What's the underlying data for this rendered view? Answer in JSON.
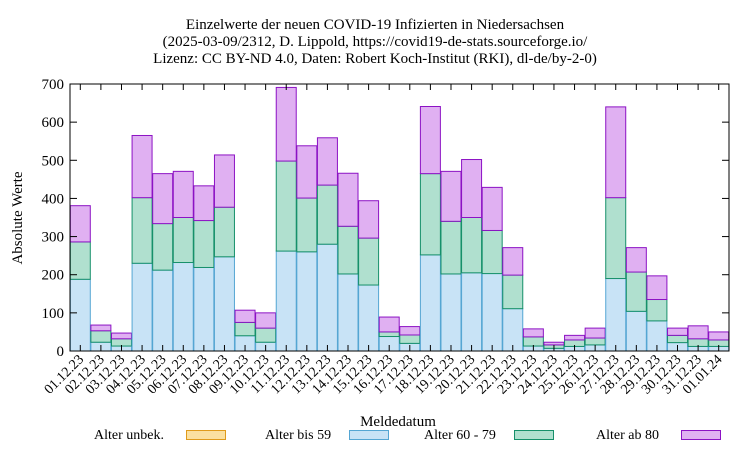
{
  "chart_data": {
    "type": "bar",
    "stacked": true,
    "title_lines": [
      "Einzelwerte der neuen COVID-19 Infizierten in Niedersachsen",
      "(2025-03-09/2312, D. Lippold, https://covid19-de-stats.sourceforge.io/",
      "Lizenz: CC BY-ND 4.0, Daten: Robert Koch-Institut (RKI), dl-de/by-2-0)"
    ],
    "xlabel": "Meldedatum",
    "ylabel": "Absolute Werte",
    "ylim": [
      0,
      700
    ],
    "yticks": [
      "0",
      "100",
      "200",
      "300",
      "400",
      "500",
      "600",
      "700"
    ],
    "grid": false,
    "legend_position": "bottom",
    "categories": [
      "01.12.23",
      "02.12.23",
      "03.12.23",
      "04.12.23",
      "05.12.23",
      "06.12.23",
      "07.12.23",
      "08.12.23",
      "09.12.23",
      "10.12.23",
      "11.12.23",
      "12.12.23",
      "13.12.23",
      "14.12.23",
      "15.12.23",
      "16.12.23",
      "17.12.23",
      "18.12.23",
      "19.12.23",
      "20.12.23",
      "21.12.23",
      "22.12.23",
      "23.12.23",
      "24.12.23",
      "25.12.23",
      "26.12.23",
      "27.12.23",
      "28.12.23",
      "29.12.23",
      "30.12.23",
      "31.12.23",
      "01.01.24"
    ],
    "series": [
      {
        "name": "Alter unbek.",
        "fill": "#fbe0a0",
        "stroke": "#e09b1c",
        "values": [
          0,
          0,
          0,
          0,
          0,
          0,
          0,
          0,
          0,
          0,
          0,
          0,
          0,
          0,
          0,
          0,
          0,
          0,
          0,
          0,
          0,
          0,
          0,
          0,
          0,
          0,
          0,
          0,
          0,
          0,
          0,
          0
        ]
      },
      {
        "name": "Alter bis 59",
        "fill": "#c8e3f6",
        "stroke": "#55a6d3",
        "values": [
          188,
          23,
          13,
          230,
          212,
          232,
          219,
          247,
          40,
          23,
          262,
          260,
          280,
          202,
          173,
          38,
          20,
          252,
          202,
          205,
          203,
          111,
          13,
          7,
          12,
          16,
          190,
          104,
          79,
          22,
          12,
          12
        ]
      },
      {
        "name": "Alter 60 - 79",
        "fill": "#b0e0cf",
        "stroke": "#16906a",
        "values": [
          98,
          30,
          19,
          172,
          122,
          118,
          123,
          130,
          35,
          37,
          236,
          141,
          155,
          125,
          123,
          12,
          22,
          213,
          138,
          145,
          113,
          88,
          24,
          9,
          17,
          18,
          212,
          103,
          56,
          19,
          20,
          17
        ]
      },
      {
        "name": "Alter ab 80",
        "fill": "#e0b0f2",
        "stroke": "#8c12c4",
        "values": [
          95,
          15,
          15,
          163,
          131,
          121,
          91,
          137,
          32,
          40,
          193,
          137,
          124,
          139,
          98,
          39,
          22,
          176,
          131,
          152,
          113,
          72,
          21,
          7,
          12,
          26,
          238,
          64,
          62,
          19,
          34,
          21
        ]
      }
    ]
  }
}
